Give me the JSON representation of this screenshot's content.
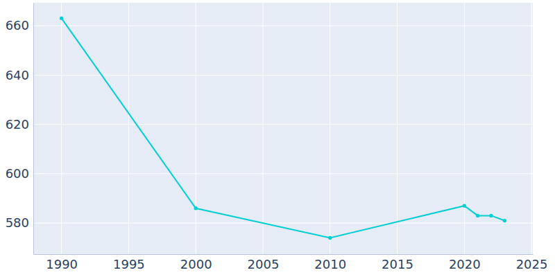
{
  "chart_data": {
    "type": "line",
    "x": [
      1990,
      2000,
      2010,
      2020,
      2021,
      2022,
      2023
    ],
    "values": [
      663,
      586,
      574,
      587,
      583,
      583,
      581
    ],
    "color": "#00ced1",
    "marker": "circle",
    "line_style": "solid",
    "xlim": [
      1987.9,
      2025.1
    ],
    "xticks": [
      1990,
      1995,
      2000,
      2005,
      2010,
      2015,
      2020,
      2025
    ],
    "ylim": [
      567.4,
      669.3
    ],
    "yticks": [
      580,
      600,
      620,
      640,
      660
    ],
    "grid": true
  }
}
